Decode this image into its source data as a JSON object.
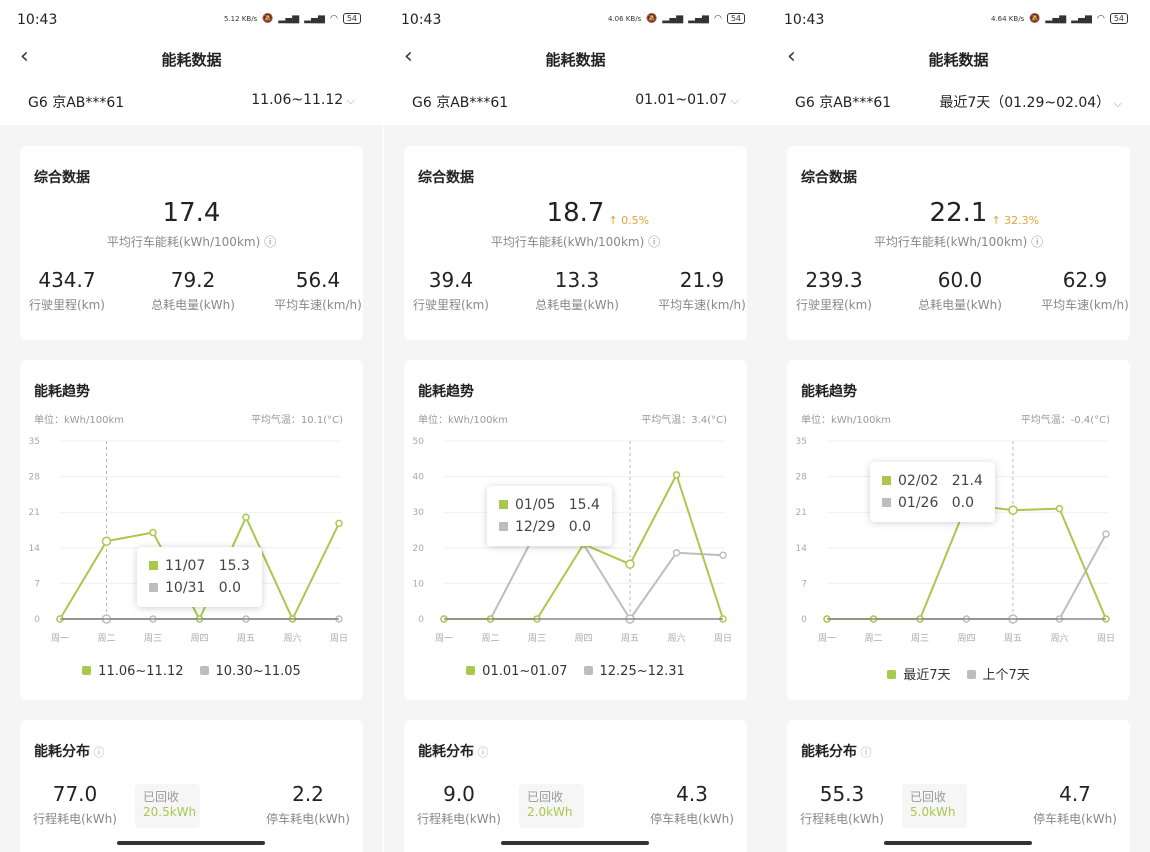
{
  "colors": {
    "current": "#a9c84e",
    "previous": "#bdbdbd",
    "increase": "#e8a23a",
    "background": "#f5f5f5"
  },
  "weekdays": [
    "周一",
    "周二",
    "周三",
    "周四",
    "周五",
    "周六",
    "周日"
  ],
  "panels": [
    {
      "status": {
        "time": "10:43",
        "speed": "5.12 KB/s",
        "battery": "54"
      },
      "header": {
        "back_icon": "chevron-left-icon",
        "title": "能耗数据"
      },
      "vehicle": "G6 京AB***61",
      "date_range": "11.06~11.12",
      "summary": {
        "title": "综合数据",
        "avg_consumption": "17.4",
        "change": "",
        "avg_label": "平均行车能耗(kWh/100km)",
        "stats": [
          {
            "value": "434.7",
            "label": "行驶里程(km)"
          },
          {
            "value": "79.2",
            "label": "总耗电量(kWh)"
          },
          {
            "value": "56.4",
            "label": "平均车速(km/h)"
          }
        ]
      },
      "trend": {
        "title": "能耗趋势",
        "unit": "单位：kWh/100km",
        "temp": "平均气温：10.1(°C)",
        "chart_data": {
          "type": "line",
          "categories": [
            "周一",
            "周二",
            "周三",
            "周四",
            "周五",
            "周六",
            "周日"
          ],
          "ylim": [
            0,
            35
          ],
          "yticks": [
            0,
            7,
            14,
            21,
            28,
            35
          ],
          "series": [
            {
              "name": "11.06~11.12",
              "values": [
                0,
                15.3,
                17.0,
                0,
                20.0,
                0,
                18.8
              ]
            },
            {
              "name": "10.30~11.05",
              "values": [
                0,
                0,
                0,
                0,
                0,
                0,
                0
              ]
            }
          ],
          "selected_index": 1,
          "tooltip": [
            {
              "date": "11/07",
              "value": "15.3"
            },
            {
              "date": "10/31",
              "value": "0.0"
            }
          ]
        }
      },
      "distribution": {
        "title": "能耗分布",
        "trip": {
          "value": "77.0",
          "label": "行程耗电(kWh)"
        },
        "recovered": {
          "label": "已回收",
          "value": "20.5kWh"
        },
        "parking": {
          "value": "2.2",
          "label": "停车耗电(kWh)"
        }
      }
    },
    {
      "status": {
        "time": "10:43",
        "speed": "4.06 KB/s",
        "battery": "54"
      },
      "header": {
        "back_icon": "chevron-left-icon",
        "title": "能耗数据"
      },
      "vehicle": "G6 京AB***61",
      "date_range": "01.01~01.07",
      "summary": {
        "title": "综合数据",
        "avg_consumption": "18.7",
        "change": "↑ 0.5%",
        "avg_label": "平均行车能耗(kWh/100km)",
        "stats": [
          {
            "value": "39.4",
            "label": "行驶里程(km)"
          },
          {
            "value": "13.3",
            "label": "总耗电量(kWh)"
          },
          {
            "value": "21.9",
            "label": "平均车速(km/h)"
          }
        ]
      },
      "trend": {
        "title": "能耗趋势",
        "unit": "单位：kWh/100km",
        "temp": "平均气温：3.4(°C)",
        "chart_data": {
          "type": "line",
          "categories": [
            "周一",
            "周二",
            "周三",
            "周四",
            "周五",
            "周六",
            "周日"
          ],
          "ylim": [
            0,
            50
          ],
          "yticks": [
            0,
            10,
            20,
            30,
            40,
            50
          ],
          "series": [
            {
              "name": "01.01~01.07",
              "values": [
                0,
                0,
                0,
                21,
                15.4,
                40.5,
                0
              ]
            },
            {
              "name": "12.25~12.31",
              "values": [
                0,
                0,
                25,
                21,
                0,
                18.6,
                17.9
              ]
            }
          ],
          "selected_index": 4,
          "tooltip": [
            {
              "date": "01/05",
              "value": "15.4"
            },
            {
              "date": "12/29",
              "value": "0.0"
            }
          ]
        }
      },
      "distribution": {
        "title": "能耗分布",
        "trip": {
          "value": "9.0",
          "label": "行程耗电(kWh)"
        },
        "recovered": {
          "label": "已回收",
          "value": "2.0kWh"
        },
        "parking": {
          "value": "4.3",
          "label": "停车耗电(kWh)"
        }
      }
    },
    {
      "status": {
        "time": "10:43",
        "speed": "4.64 KB/s",
        "battery": "54"
      },
      "header": {
        "back_icon": "chevron-left-icon",
        "title": "能耗数据"
      },
      "vehicle": "G6 京AB***61",
      "date_range": "最近7天（01.29~02.04）",
      "summary": {
        "title": "综合数据",
        "avg_consumption": "22.1",
        "change": "↑ 32.3%",
        "avg_label": "平均行车能耗(kWh/100km)",
        "stats": [
          {
            "value": "239.3",
            "label": "行驶里程(km)"
          },
          {
            "value": "60.0",
            "label": "总耗电量(kWh)"
          },
          {
            "value": "62.9",
            "label": "平均车速(km/h)"
          }
        ]
      },
      "trend": {
        "title": "能耗趋势",
        "unit": "单位：kWh/100km",
        "temp": "平均气温：-0.4(°C)",
        "chart_data": {
          "type": "line",
          "categories": [
            "周一",
            "周二",
            "周三",
            "周四",
            "周五",
            "周六",
            "周日"
          ],
          "ylim": [
            0,
            35
          ],
          "yticks": [
            0,
            7,
            14,
            21,
            28,
            35
          ],
          "series": [
            {
              "name": "最近7天",
              "values": [
                0,
                0,
                0,
                22.5,
                21.4,
                21.7,
                0
              ]
            },
            {
              "name": "上个7天",
              "values": [
                0,
                0,
                0,
                0,
                0,
                0,
                16.7
              ]
            }
          ],
          "selected_index": 4,
          "tooltip": [
            {
              "date": "02/02",
              "value": "21.4"
            },
            {
              "date": "01/26",
              "value": "0.0"
            }
          ]
        }
      },
      "distribution": {
        "title": "能耗分布",
        "trip": {
          "value": "55.3",
          "label": "行程耗电(kWh)"
        },
        "recovered": {
          "label": "已回收",
          "value": "5.0kWh"
        },
        "parking": {
          "value": "4.7",
          "label": "停车耗电(kWh)"
        }
      }
    }
  ]
}
